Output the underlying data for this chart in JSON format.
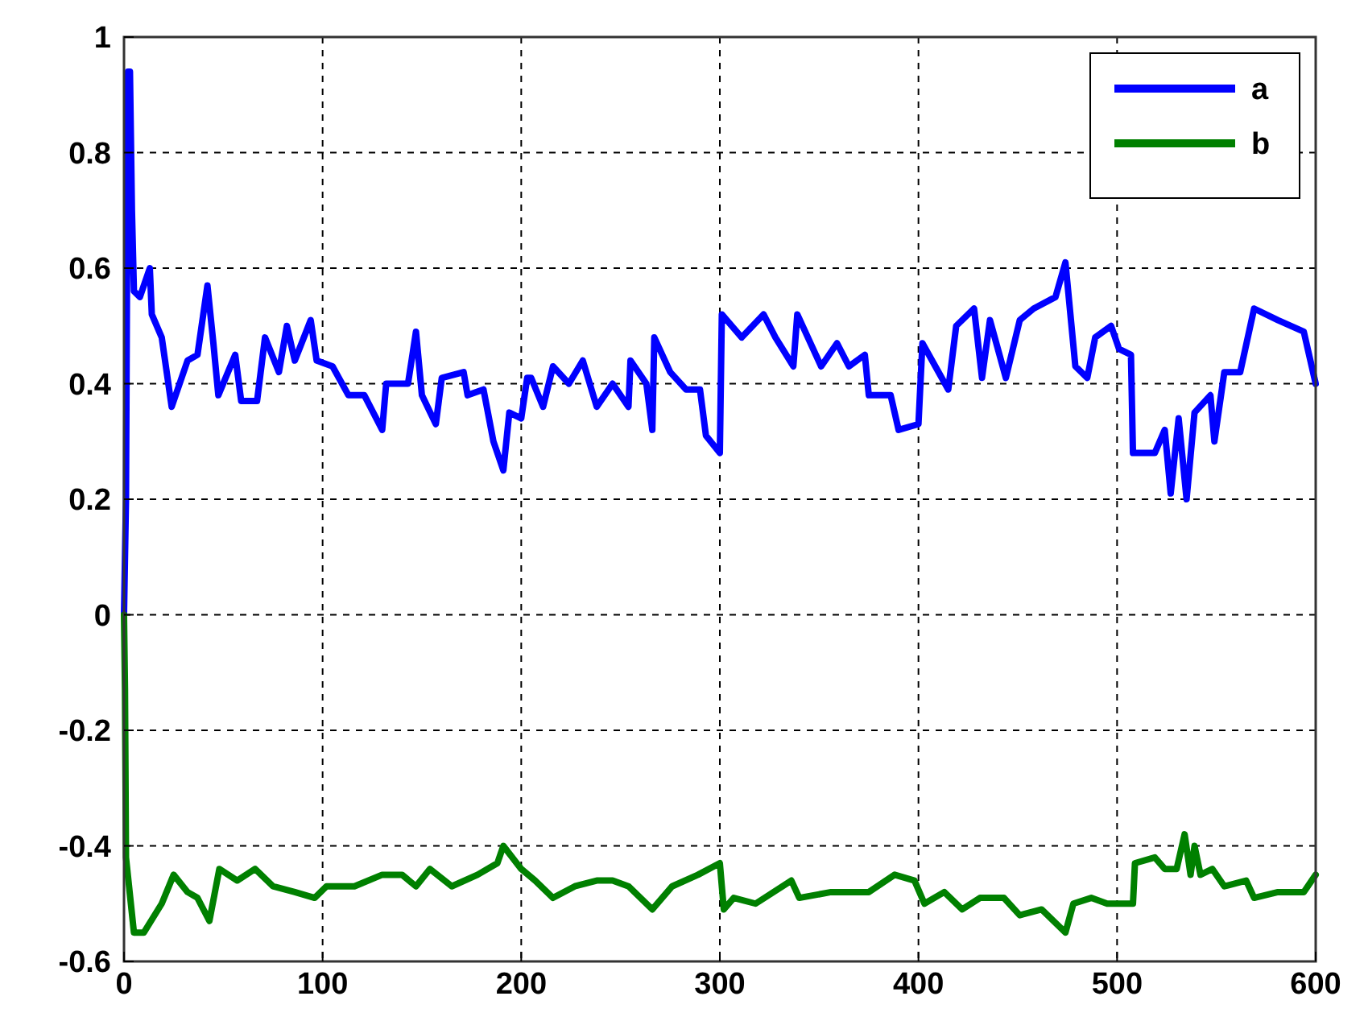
{
  "chart_data": {
    "type": "line",
    "xlim": [
      0,
      600
    ],
    "ylim": [
      -0.6,
      1
    ],
    "xticks": [
      0,
      100,
      200,
      300,
      400,
      500,
      600
    ],
    "yticks": [
      -0.6,
      -0.4,
      -0.2,
      0,
      0.2,
      0.4,
      0.6,
      0.8,
      1
    ],
    "grid": true,
    "legend": "top right",
    "line_style": "solid",
    "marker": "none",
    "series": [
      {
        "name": "a",
        "color": "#0000ff",
        "x": [
          0,
          1,
          2,
          3,
          4,
          5,
          8,
          13,
          14,
          19,
          24,
          32,
          37,
          42,
          45,
          47.5,
          56,
          59,
          67,
          71,
          78,
          82,
          86,
          94,
          97,
          105,
          113,
          121,
          130,
          132,
          143,
          147,
          150,
          157,
          160,
          171,
          173,
          181,
          186,
          191,
          194,
          200,
          203,
          205,
          211,
          216,
          224,
          231,
          238,
          246,
          254,
          255,
          263,
          266,
          267,
          275,
          283,
          290,
          293,
          300,
          301,
          311,
          322,
          328,
          337,
          339,
          351,
          359,
          365,
          373,
          375,
          386,
          390,
          400,
          402,
          415,
          419,
          428,
          432,
          436,
          444,
          451,
          458,
          469,
          474,
          479,
          485,
          489,
          497,
          501,
          507,
          508,
          519,
          524,
          527,
          531,
          535,
          539,
          547,
          549,
          554,
          562,
          569,
          581,
          594,
          600
        ],
        "values": [
          0,
          0.2,
          0.94,
          0.94,
          0.7,
          0.56,
          0.55,
          0.6,
          0.52,
          0.48,
          0.36,
          0.44,
          0.45,
          0.57,
          0.47,
          0.38,
          0.45,
          0.37,
          0.37,
          0.48,
          0.42,
          0.5,
          0.44,
          0.51,
          0.44,
          0.43,
          0.38,
          0.38,
          0.32,
          0.4,
          0.4,
          0.49,
          0.38,
          0.33,
          0.41,
          0.42,
          0.38,
          0.39,
          0.3,
          0.25,
          0.35,
          0.34,
          0.41,
          0.41,
          0.36,
          0.43,
          0.4,
          0.44,
          0.36,
          0.4,
          0.36,
          0.44,
          0.4,
          0.32,
          0.48,
          0.42,
          0.39,
          0.39,
          0.31,
          0.28,
          0.52,
          0.48,
          0.52,
          0.48,
          0.43,
          0.52,
          0.43,
          0.47,
          0.43,
          0.45,
          0.38,
          0.38,
          0.32,
          0.33,
          0.47,
          0.39,
          0.5,
          0.53,
          0.41,
          0.51,
          0.41,
          0.51,
          0.53,
          0.55,
          0.61,
          0.43,
          0.41,
          0.48,
          0.5,
          0.46,
          0.45,
          0.28,
          0.28,
          0.32,
          0.21,
          0.34,
          0.2,
          0.35,
          0.38,
          0.3,
          0.42,
          0.42,
          0.53,
          0.51,
          0.49,
          0.4
        ]
      },
      {
        "name": "b",
        "color": "#008000",
        "x": [
          0,
          0.5,
          1,
          5,
          10,
          19,
          25,
          32,
          37,
          43,
          48,
          57,
          66,
          75,
          86,
          96,
          102,
          116,
          130,
          140,
          147,
          154,
          165,
          178,
          188,
          191,
          200,
          207,
          216,
          227,
          238,
          246,
          254,
          266,
          276,
          289,
          300,
          302,
          307,
          318,
          336,
          340,
          356,
          375,
          388,
          398,
          403,
          413,
          422,
          431,
          443,
          451,
          462,
          474,
          478,
          487,
          495,
          508,
          509,
          519,
          524,
          530,
          534,
          537,
          539,
          542,
          548,
          554,
          565,
          569,
          581,
          594,
          600
        ],
        "values": [
          0,
          -0.13,
          -0.42,
          -0.55,
          -0.55,
          -0.5,
          -0.45,
          -0.48,
          -0.49,
          -0.53,
          -0.44,
          -0.46,
          -0.44,
          -0.47,
          -0.48,
          -0.49,
          -0.47,
          -0.47,
          -0.45,
          -0.45,
          -0.47,
          -0.44,
          -0.47,
          -0.45,
          -0.43,
          -0.4,
          -0.44,
          -0.46,
          -0.49,
          -0.47,
          -0.46,
          -0.46,
          -0.47,
          -0.51,
          -0.47,
          -0.45,
          -0.43,
          -0.51,
          -0.49,
          -0.5,
          -0.46,
          -0.49,
          -0.48,
          -0.48,
          -0.45,
          -0.46,
          -0.5,
          -0.48,
          -0.51,
          -0.49,
          -0.49,
          -0.52,
          -0.51,
          -0.55,
          -0.5,
          -0.49,
          -0.5,
          -0.5,
          -0.43,
          -0.42,
          -0.44,
          -0.44,
          -0.38,
          -0.45,
          -0.4,
          -0.45,
          -0.44,
          -0.47,
          -0.46,
          -0.49,
          -0.48,
          -0.48,
          -0.45
        ]
      }
    ]
  }
}
